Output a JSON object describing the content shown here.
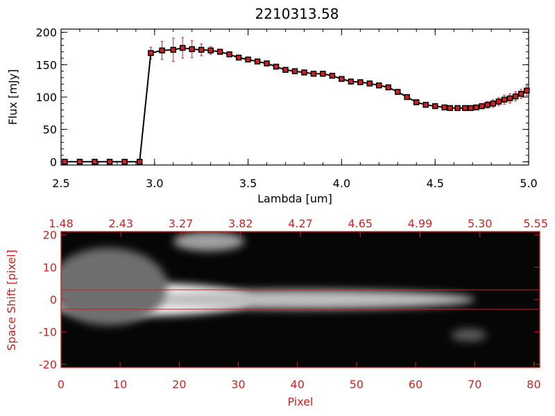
{
  "chart_data": [
    {
      "type": "line",
      "title": "2210313.58",
      "xlabel": "Lambda [um]",
      "ylabel": "Flux [mJy]",
      "xlim": [
        2.5,
        5.0
      ],
      "ylim": [
        -5,
        205
      ],
      "xticks": [
        "2.5",
        "3.0",
        "3.5",
        "4.0",
        "4.5",
        "5.0"
      ],
      "yticks": [
        "0",
        "50",
        "100",
        "150",
        "200"
      ],
      "colors": {
        "line": "#000000",
        "marker": "#000000",
        "marker_fill": "#cc2222",
        "errorbar": "#cc2222"
      },
      "series": [
        {
          "name": "flux",
          "x": [
            2.52,
            2.6,
            2.68,
            2.76,
            2.84,
            2.92,
            2.98,
            3.04,
            3.1,
            3.15,
            3.2,
            3.25,
            3.3,
            3.35,
            3.4,
            3.45,
            3.5,
            3.55,
            3.6,
            3.65,
            3.7,
            3.75,
            3.8,
            3.85,
            3.9,
            3.95,
            4.0,
            4.05,
            4.1,
            4.15,
            4.2,
            4.25,
            4.3,
            4.35,
            4.4,
            4.45,
            4.5,
            4.55,
            4.58,
            4.62,
            4.66,
            4.69,
            4.72,
            4.75,
            4.78,
            4.81,
            4.84,
            4.87,
            4.9,
            4.93,
            4.96,
            4.99
          ],
          "values": [
            0,
            0,
            0,
            0,
            0,
            0,
            168,
            172,
            173,
            176,
            174,
            173,
            172,
            170,
            166,
            161,
            158,
            155,
            152,
            147,
            142,
            140,
            138,
            136,
            136,
            133,
            128,
            124,
            123,
            121,
            118,
            115,
            108,
            100,
            92,
            88,
            86,
            84,
            83,
            83,
            83,
            83,
            84,
            86,
            88,
            90,
            93,
            96,
            98,
            101,
            105,
            110
          ],
          "yerr": [
            0,
            0,
            0,
            0,
            0,
            0,
            9,
            14,
            18,
            16,
            13,
            9,
            6,
            4,
            3,
            3,
            3,
            3,
            3,
            3,
            3,
            3,
            3,
            3,
            3,
            3,
            3,
            3,
            3,
            3,
            3,
            3,
            3,
            3,
            3,
            3,
            3,
            3,
            3,
            3,
            3,
            3,
            3,
            4,
            5,
            6,
            6,
            7,
            7,
            7,
            7,
            8
          ]
        }
      ]
    },
    {
      "type": "heatmap",
      "xlabel": "Pixel",
      "ylabel": "Space Shift [pixel]",
      "xlim": [
        0,
        81
      ],
      "ylim": [
        -21,
        21
      ],
      "xticks": [
        "0",
        "10",
        "20",
        "30",
        "40",
        "50",
        "60",
        "70",
        "80"
      ],
      "yticks": [
        "-20",
        "-10",
        "0",
        "10",
        "20"
      ],
      "top_xticks": [
        "1.48",
        "2.43",
        "3.27",
        "3.82",
        "4.27",
        "4.65",
        "4.99",
        "5.30",
        "5.55"
      ],
      "extraction_aperture": [
        -3,
        3
      ],
      "colors": {
        "axis": "#cc2222",
        "aperture": "#cc2222"
      },
      "blobs": [
        {
          "center": [
            14,
            0
          ],
          "radius": [
            18,
            5
          ],
          "intensity": 255
        },
        {
          "center": [
            40,
            0
          ],
          "radius": [
            30,
            3
          ],
          "intensity": 190
        },
        {
          "center": [
            8,
            4
          ],
          "radius": [
            10,
            12
          ],
          "intensity": 110
        },
        {
          "center": [
            25,
            18
          ],
          "radius": [
            6,
            3
          ],
          "intensity": 160
        },
        {
          "center": [
            69,
            -11
          ],
          "radius": [
            3,
            2
          ],
          "intensity": 90
        }
      ]
    }
  ]
}
